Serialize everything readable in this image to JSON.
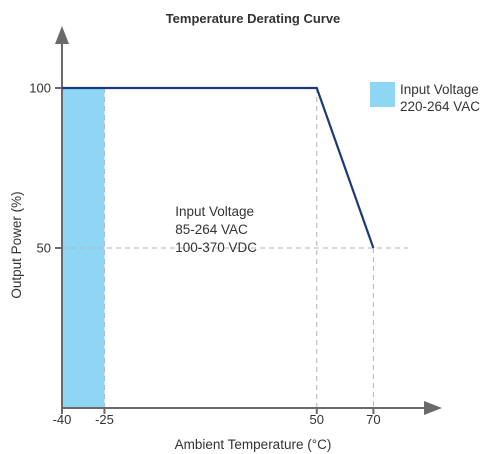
{
  "chart_data": {
    "type": "line",
    "title": "Temperature Derating Curve",
    "xlabel": "Ambient Temperature (°C)",
    "ylabel": "Output Power (%)",
    "xlim": [
      -40,
      90
    ],
    "ylim": [
      0,
      115
    ],
    "x_ticks": [
      -40,
      -25,
      50,
      70
    ],
    "x_tick_labels": [
      "-40",
      "-25",
      "50",
      "70"
    ],
    "y_ticks": [
      50,
      100
    ],
    "y_tick_labels": [
      "50",
      "100"
    ],
    "series": [
      {
        "x": [
          -40,
          50,
          70
        ],
        "y": [
          100,
          100,
          50
        ],
        "color": "#1b3a78"
      }
    ],
    "shaded_region": {
      "x": [
        -40,
        -25
      ],
      "y": [
        0,
        100
      ],
      "color": "#8fd6f5"
    },
    "legend": {
      "placement": "top-right",
      "lines": [
        "Input Voltage",
        "220-264 VAC"
      ],
      "color": "#8fd6f5"
    },
    "annotation": {
      "at": {
        "x": 0,
        "y": 60
      },
      "lines": [
        "Input Voltage",
        "85-264 VAC",
        "100-370 VDC"
      ]
    },
    "colors": {
      "axis": "#6a6a6a",
      "grid": "#b5b5b5",
      "text": "#333333"
    }
  }
}
